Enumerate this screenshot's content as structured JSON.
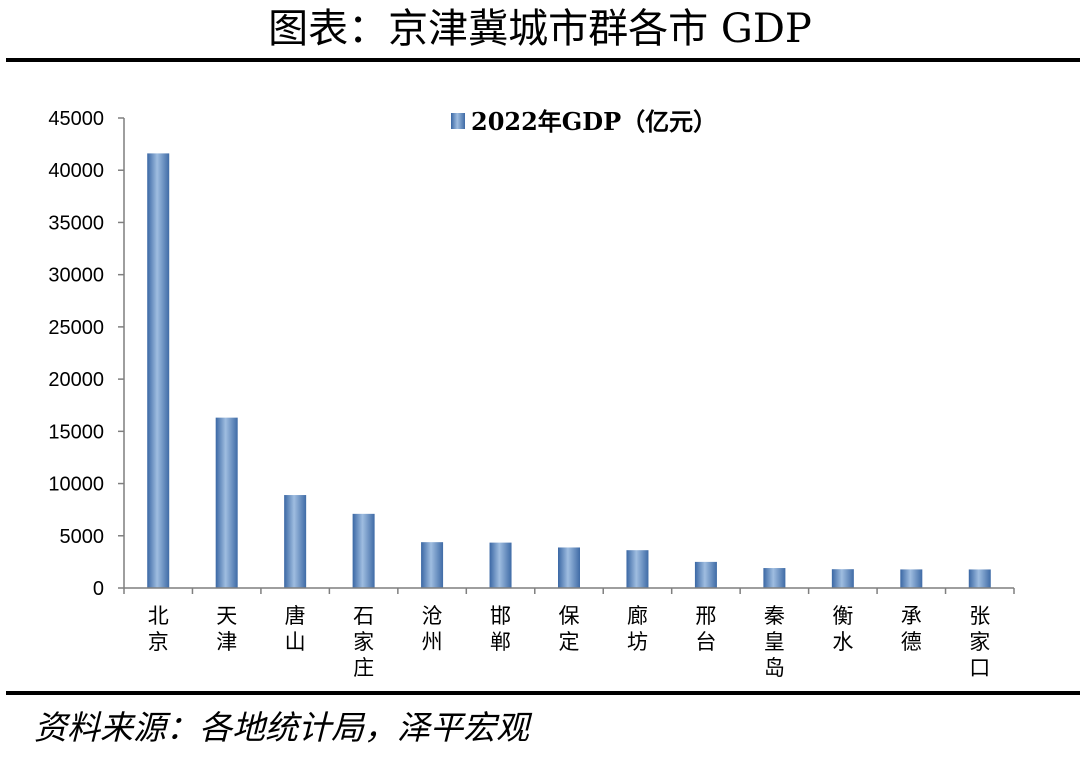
{
  "page": {
    "title": "图表：京津冀城市群各市 GDP",
    "source": "资料来源：各地统计局，泽平宏观"
  },
  "chart_data": {
    "type": "bar",
    "categories": [
      "北京",
      "天津",
      "唐山",
      "石家庄",
      "沧州",
      "邯郸",
      "保定",
      "廊坊",
      "邢台",
      "秦皇岛",
      "衡水",
      "承德",
      "张家口"
    ],
    "series": [
      {
        "name": "2022年GDP（亿元）",
        "values": [
          41611,
          16311,
          8900,
          7100,
          4388,
          4346,
          3880,
          3620,
          2500,
          1910,
          1800,
          1780,
          1776
        ],
        "color": "#4f81bd"
      }
    ],
    "yticks": [
      "0",
      "5000",
      "10000",
      "15000",
      "20000",
      "25000",
      "30000",
      "35000",
      "40000",
      "45000"
    ],
    "ylim": [
      0,
      45000
    ],
    "grid": false,
    "legend": "top-center"
  }
}
